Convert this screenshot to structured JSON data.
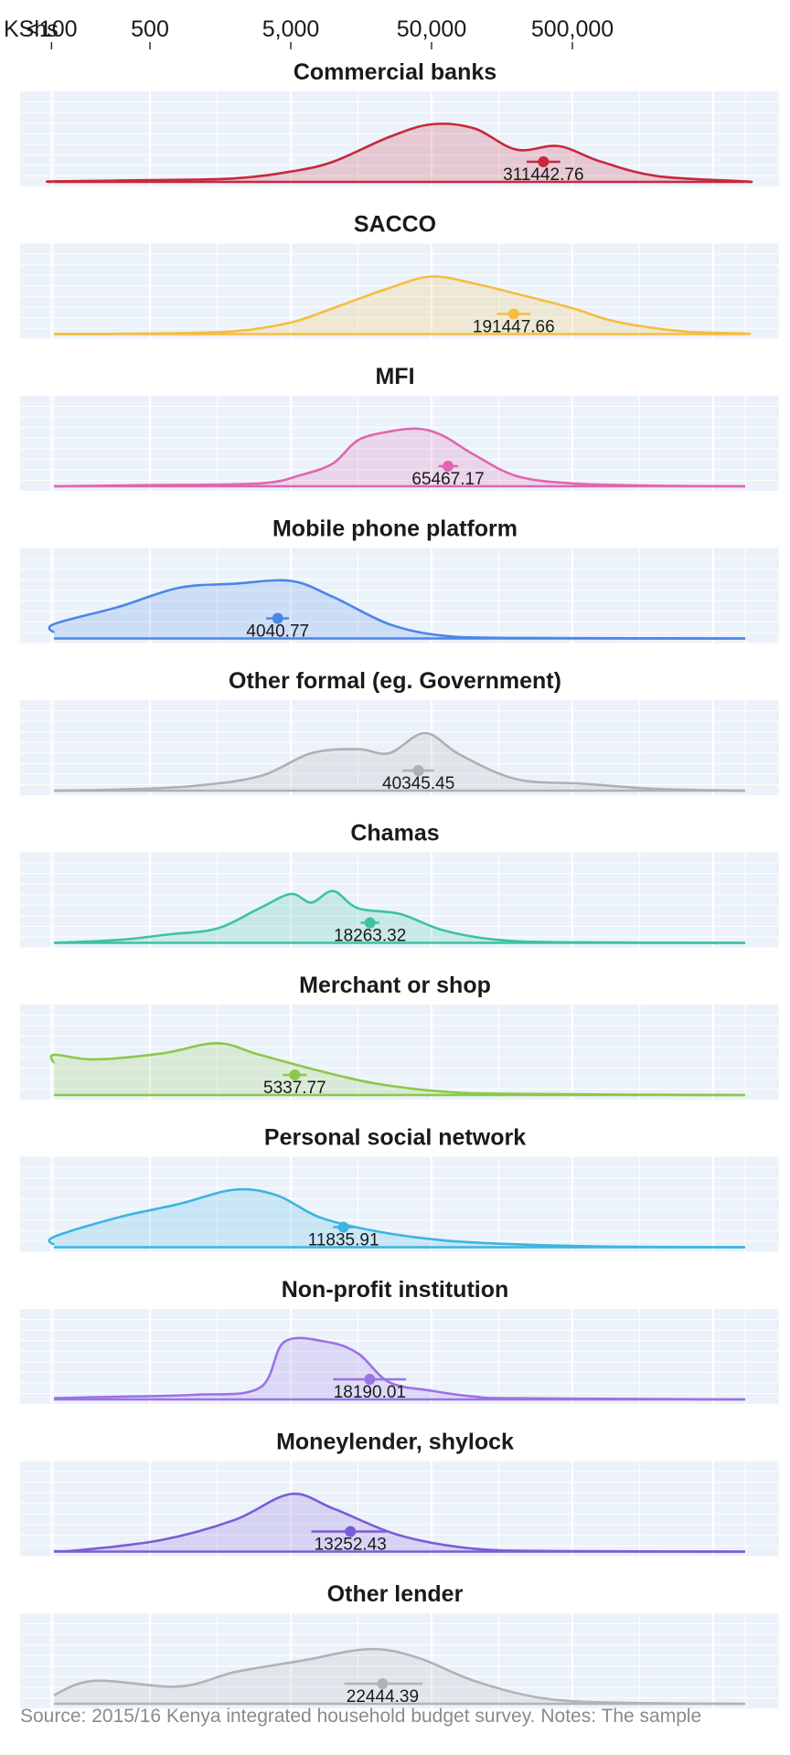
{
  "chart_data": {
    "type": "area",
    "axis": {
      "unit_label": "KShs",
      "scale": "log10",
      "ticks": [
        {
          "label": "<100",
          "value": 100
        },
        {
          "label": "500",
          "value": 500
        },
        {
          "label": "5,000",
          "value": 5000
        },
        {
          "label": "50,000",
          "value": 50000
        },
        {
          "label": "500,000",
          "value": 500000
        }
      ],
      "xlim": [
        31,
        50000000
      ]
    },
    "grid": true,
    "panels": [
      {
        "title": "Commercial banks",
        "color": "#C8283C",
        "mean": 311442.76,
        "mean_label": "311442.76",
        "ci": [
          237000,
          410000
        ],
        "density": [
          [
            31,
            0.0
          ],
          [
            100,
            0.01
          ],
          [
            500,
            0.03
          ],
          [
            2000,
            0.06
          ],
          [
            5000,
            0.18
          ],
          [
            10000,
            0.35
          ],
          [
            25000,
            0.78
          ],
          [
            50000,
            1.0
          ],
          [
            100000,
            0.93
          ],
          [
            200000,
            0.56
          ],
          [
            400000,
            0.62
          ],
          [
            800000,
            0.35
          ],
          [
            2000000,
            0.1
          ],
          [
            10000000,
            0.01
          ],
          [
            50000000,
            0.0
          ]
        ]
      },
      {
        "title": "SACCO",
        "color": "#F5BE41",
        "mean": 191447.66,
        "mean_label": "191447.66",
        "ci": [
          146000,
          253000
        ],
        "density": [
          [
            31,
            0.0
          ],
          [
            500,
            0.01
          ],
          [
            2000,
            0.05
          ],
          [
            5000,
            0.2
          ],
          [
            10000,
            0.45
          ],
          [
            25000,
            0.8
          ],
          [
            50000,
            1.0
          ],
          [
            100000,
            0.88
          ],
          [
            200000,
            0.7
          ],
          [
            500000,
            0.45
          ],
          [
            1000000,
            0.22
          ],
          [
            3000000,
            0.05
          ],
          [
            10000000,
            0.01
          ],
          [
            50000000,
            0.0
          ]
        ]
      },
      {
        "title": "MFI",
        "color": "#E066B0",
        "mean": 65467.17,
        "mean_label": "65467.17",
        "ci": [
          56000,
          77000
        ],
        "density": [
          [
            31,
            0.0
          ],
          [
            500,
            0.02
          ],
          [
            3000,
            0.05
          ],
          [
            6000,
            0.2
          ],
          [
            10000,
            0.4
          ],
          [
            15000,
            0.8
          ],
          [
            25000,
            0.95
          ],
          [
            40000,
            1.0
          ],
          [
            60000,
            0.88
          ],
          [
            100000,
            0.55
          ],
          [
            200000,
            0.18
          ],
          [
            500000,
            0.05
          ],
          [
            2000000,
            0.01
          ],
          [
            50000000,
            0.0
          ]
        ]
      },
      {
        "title": "Mobile phone platform",
        "color": "#4A86E8",
        "mean": 4040.77,
        "mean_label": "4040.77",
        "ci": [
          3350,
          4850
        ],
        "density": [
          [
            31,
            0.1
          ],
          [
            100,
            0.25
          ],
          [
            300,
            0.55
          ],
          [
            800,
            0.88
          ],
          [
            2000,
            0.95
          ],
          [
            5000,
            1.0
          ],
          [
            10000,
            0.72
          ],
          [
            25000,
            0.25
          ],
          [
            60000,
            0.05
          ],
          [
            200000,
            0.01
          ],
          [
            50000000,
            0.0
          ]
        ]
      },
      {
        "title": "Other formal (eg. Government)",
        "color": "#B0B0B0",
        "mean": 40345.45,
        "mean_label": "40345.45",
        "ci": [
          31000,
          52000
        ],
        "density": [
          [
            31,
            0.0
          ],
          [
            300,
            0.02
          ],
          [
            1000,
            0.08
          ],
          [
            3000,
            0.25
          ],
          [
            7000,
            0.65
          ],
          [
            15000,
            0.72
          ],
          [
            25000,
            0.65
          ],
          [
            45000,
            1.0
          ],
          [
            80000,
            0.62
          ],
          [
            200000,
            0.2
          ],
          [
            600000,
            0.12
          ],
          [
            2000000,
            0.03
          ],
          [
            50000000,
            0.0
          ]
        ]
      },
      {
        "title": "Chamas",
        "color": "#3CC49C",
        "mean": 18263.32,
        "mean_label": "18263.32",
        "ci": [
          15700,
          21300
        ],
        "density": [
          [
            31,
            0.0
          ],
          [
            300,
            0.05
          ],
          [
            700,
            0.15
          ],
          [
            1500,
            0.25
          ],
          [
            3000,
            0.6
          ],
          [
            5000,
            0.85
          ],
          [
            7000,
            0.7
          ],
          [
            10000,
            0.9
          ],
          [
            15000,
            0.6
          ],
          [
            30000,
            0.5
          ],
          [
            60000,
            0.22
          ],
          [
            150000,
            0.05
          ],
          [
            500000,
            0.01
          ],
          [
            50000000,
            0.0
          ]
        ]
      },
      {
        "title": "Merchant or shop",
        "color": "#8CC84B",
        "mean": 5337.77,
        "mean_label": "5337.77",
        "ci": [
          4400,
          6500
        ],
        "density": [
          [
            31,
            0.55
          ],
          [
            60,
            0.7
          ],
          [
            200,
            0.62
          ],
          [
            600,
            0.72
          ],
          [
            1500,
            0.9
          ],
          [
            3000,
            0.7
          ],
          [
            8000,
            0.42
          ],
          [
            20000,
            0.2
          ],
          [
            60000,
            0.06
          ],
          [
            200000,
            0.02
          ],
          [
            50000000,
            0.0
          ]
        ]
      },
      {
        "title": "Personal social network",
        "color": "#3DB4E2",
        "mean": 11835.91,
        "mean_label": "11835.91",
        "ci": [
          10000,
          14000
        ],
        "density": [
          [
            31,
            0.04
          ],
          [
            100,
            0.18
          ],
          [
            300,
            0.52
          ],
          [
            800,
            0.75
          ],
          [
            2000,
            1.0
          ],
          [
            4000,
            0.9
          ],
          [
            8000,
            0.52
          ],
          [
            20000,
            0.28
          ],
          [
            60000,
            0.12
          ],
          [
            200000,
            0.05
          ],
          [
            1000000,
            0.01
          ],
          [
            50000000,
            0.0
          ]
        ]
      },
      {
        "title": "Non-profit institution",
        "color": "#9B72E6",
        "mean": 18190.01,
        "mean_label": "18190.01",
        "ci": [
          10000,
          33000
        ],
        "density": [
          [
            31,
            0.02
          ],
          [
            200,
            0.04
          ],
          [
            1000,
            0.08
          ],
          [
            3000,
            0.2
          ],
          [
            4500,
            1.0
          ],
          [
            9000,
            1.0
          ],
          [
            15000,
            0.8
          ],
          [
            25000,
            0.3
          ],
          [
            50000,
            0.15
          ],
          [
            100000,
            0.05
          ],
          [
            200000,
            0.02
          ],
          [
            50000000,
            0.0
          ]
        ]
      },
      {
        "title": "Moneylender, shylock",
        "color": "#7C5CD6",
        "mean": 13252.43,
        "mean_label": "13252.43",
        "ci": [
          7000,
          24000
        ],
        "density": [
          [
            31,
            0.01
          ],
          [
            150,
            0.02
          ],
          [
            600,
            0.2
          ],
          [
            2000,
            0.55
          ],
          [
            5000,
            1.0
          ],
          [
            10000,
            0.75
          ],
          [
            30000,
            0.28
          ],
          [
            100000,
            0.05
          ],
          [
            400000,
            0.01
          ],
          [
            50000000,
            0.0
          ]
        ]
      },
      {
        "title": "Other lender",
        "color": "#B3B3B3",
        "mean": 22444.39,
        "mean_label": "22444.39",
        "ci": [
          12000,
          43000
        ],
        "density": [
          [
            31,
            0.15
          ],
          [
            200,
            0.4
          ],
          [
            800,
            0.3
          ],
          [
            2000,
            0.55
          ],
          [
            6000,
            0.75
          ],
          [
            18000,
            0.95
          ],
          [
            40000,
            0.8
          ],
          [
            100000,
            0.4
          ],
          [
            300000,
            0.1
          ],
          [
            1000000,
            0.02
          ],
          [
            50000000,
            0.0
          ]
        ]
      }
    ]
  },
  "footer": {
    "note": "Source: 2015/16 Kenya integrated household budget survey. Notes: The sample"
  }
}
